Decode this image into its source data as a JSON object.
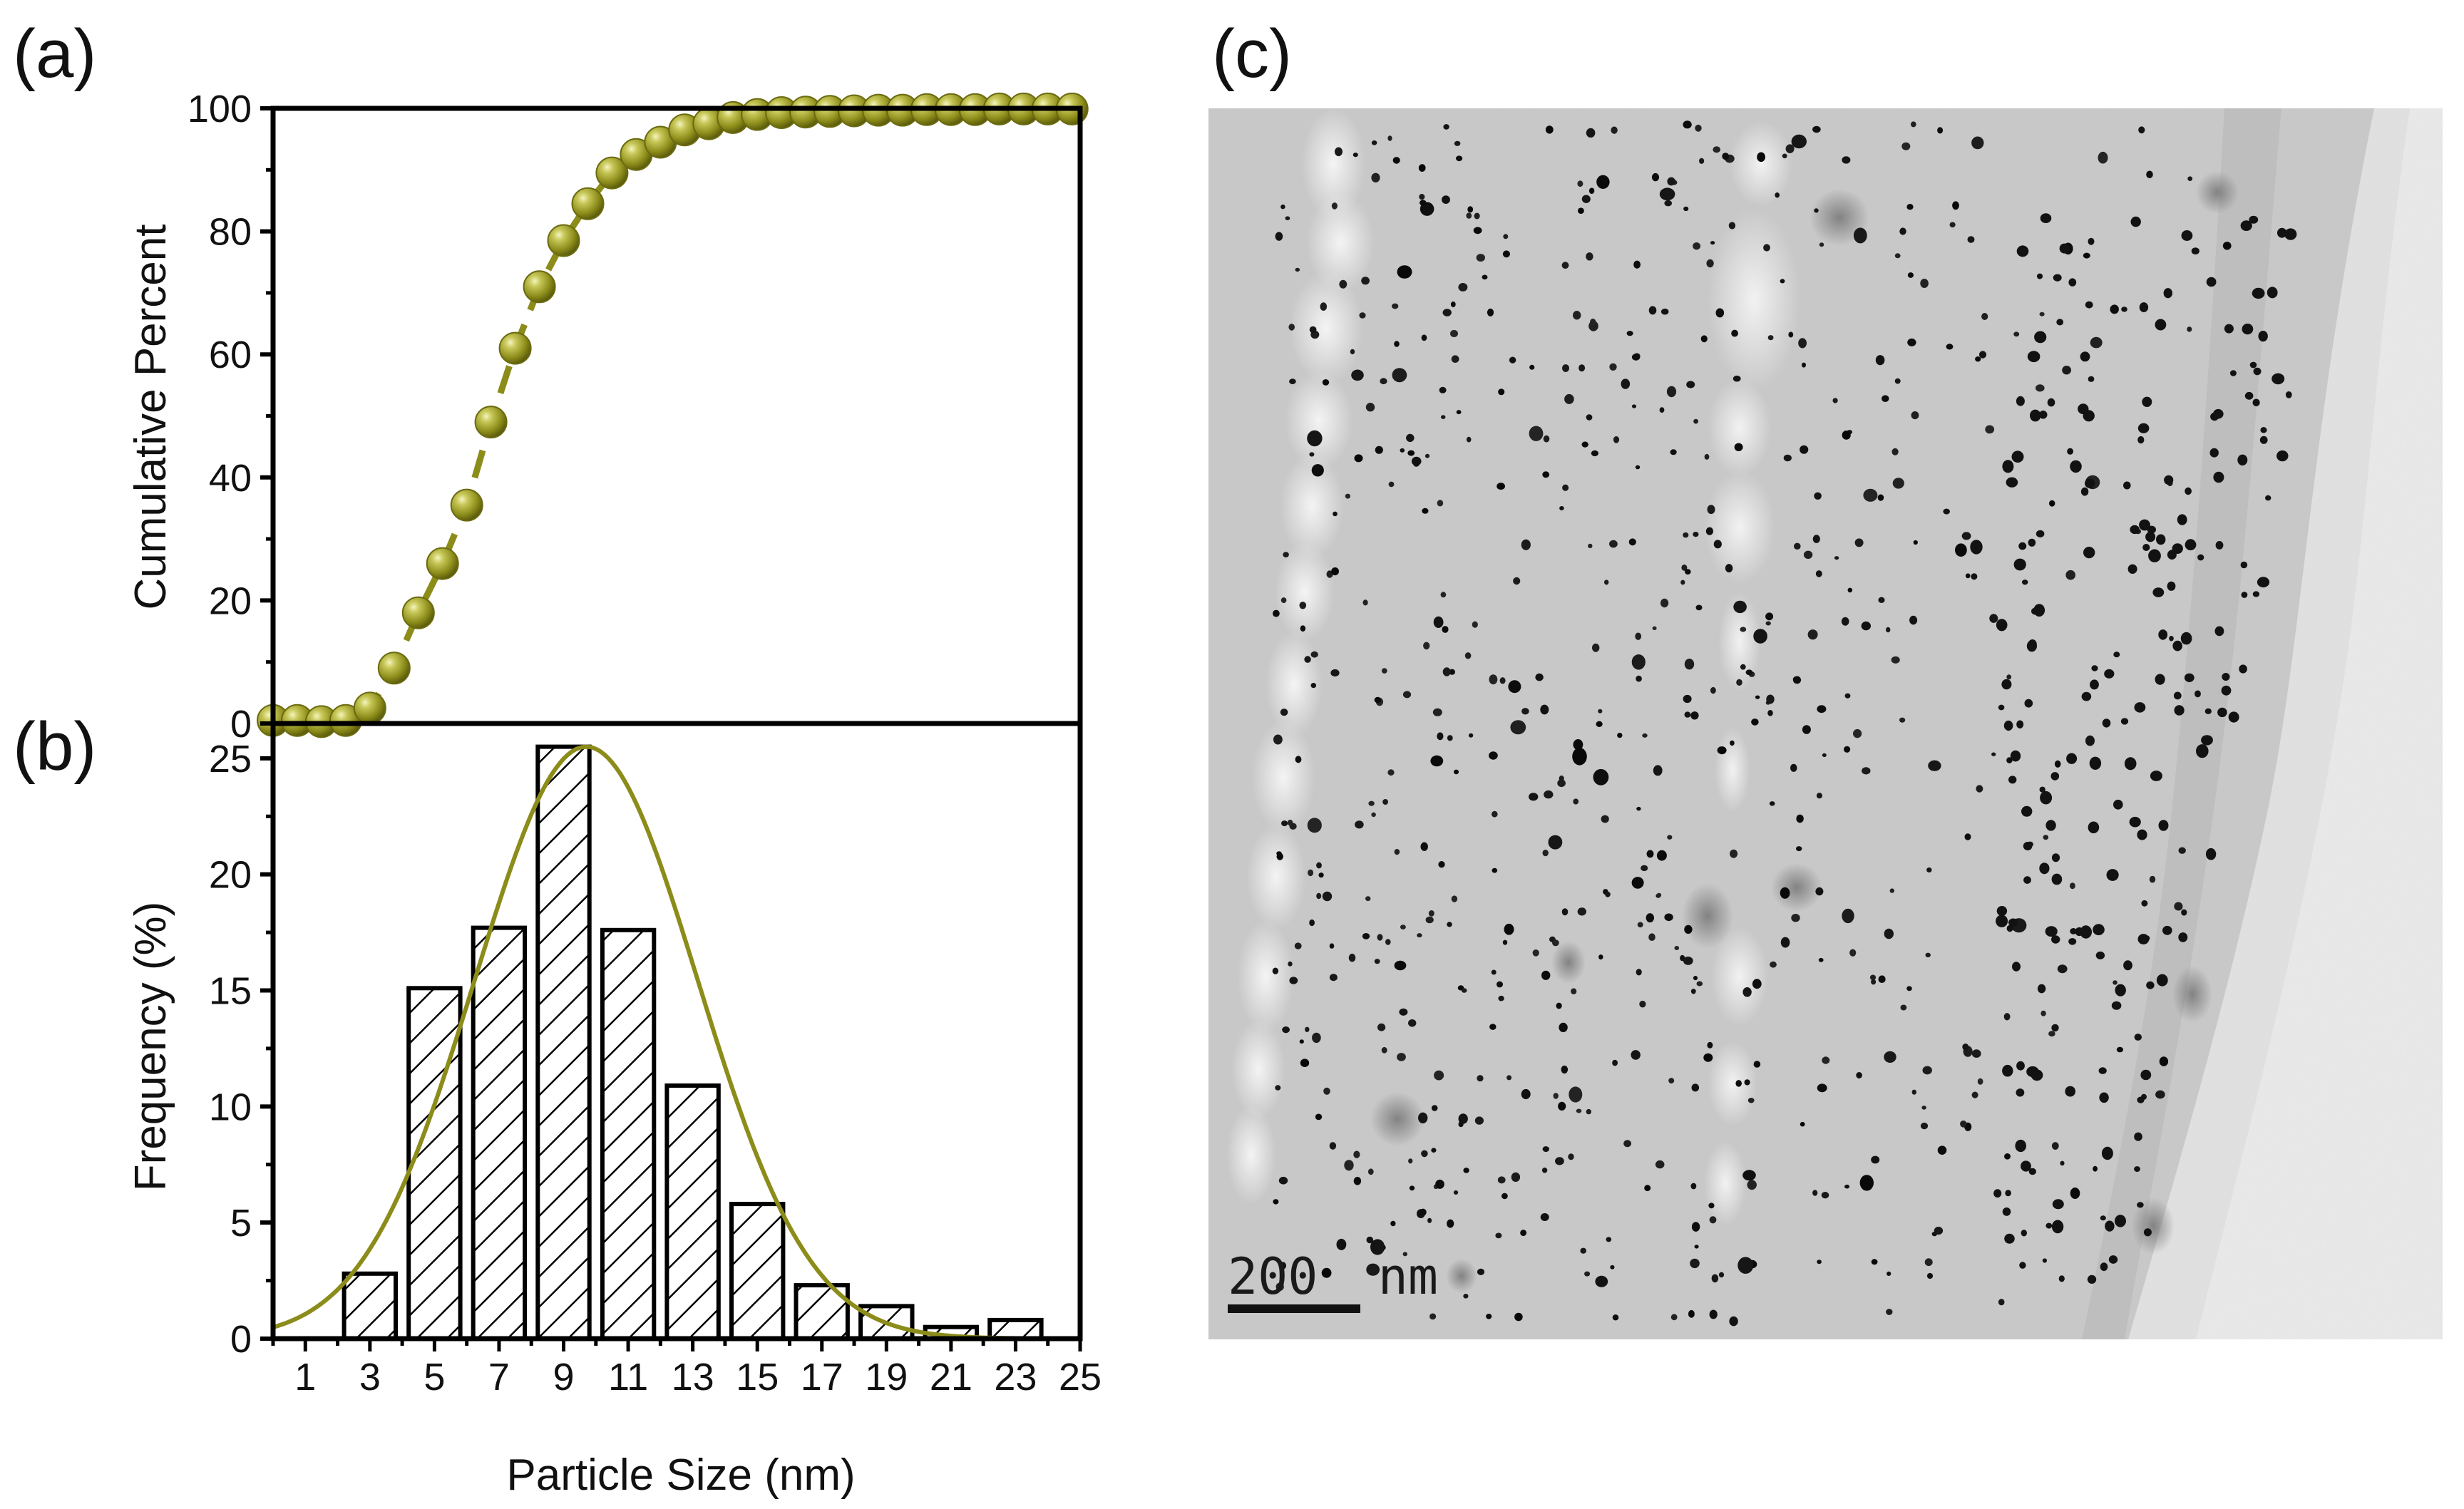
{
  "panels": {
    "a": "(a)",
    "b": "(b)",
    "c": "(c)"
  },
  "colors": {
    "accent": "#8c8c1a",
    "accent_light": "#d6d67a",
    "axis": "#000000",
    "dash_ref": "#9a9a9a"
  },
  "chart_data": [
    {
      "type": "line",
      "title": "",
      "xlabel": "",
      "ylabel": "Cumulative Percent",
      "xlim": [
        0,
        25
      ],
      "ylim": [
        0,
        100
      ],
      "yticks": [
        0,
        20,
        40,
        60,
        80,
        100
      ],
      "reference_line": 100,
      "series": [
        {
          "name": "Cumulative",
          "x": [
            0,
            0.75,
            1.5,
            2.25,
            3,
            3.75,
            4.5,
            5.25,
            6,
            6.75,
            7.5,
            8.25,
            9,
            9.75,
            10.5,
            11.25,
            12,
            12.75,
            13.5,
            14.25,
            15,
            15.75,
            16.5,
            17.25,
            18,
            18.75,
            19.5,
            20.25,
            21,
            21.75,
            22.5,
            23.25,
            24,
            24.75
          ],
          "values": [
            0.5,
            0.5,
            0.3,
            0.5,
            2.5,
            9,
            18,
            26,
            35.5,
            49,
            61,
            71,
            78.5,
            84.5,
            89.5,
            92.5,
            94.5,
            96.5,
            97.5,
            98.5,
            99,
            99.3,
            99.4,
            99.5,
            99.6,
            99.7,
            99.7,
            99.8,
            99.8,
            99.8,
            99.9,
            99.9,
            99.9,
            99.9
          ]
        }
      ]
    },
    {
      "type": "bar",
      "title": "",
      "xlabel": "Particle Size (nm)",
      "ylabel": "Frequency (%)",
      "xlim": [
        0,
        25
      ],
      "ylim": [
        0,
        26.5
      ],
      "yticks": [
        0,
        5,
        10,
        15,
        20,
        25
      ],
      "xticks": [
        1,
        3,
        5,
        7,
        9,
        11,
        13,
        15,
        17,
        19,
        21,
        23,
        25
      ],
      "bar_width": 1.6,
      "bars": {
        "centers": [
          3,
          5,
          7,
          9,
          11,
          13,
          15,
          17,
          19,
          21,
          23
        ],
        "values": [
          2.8,
          15.1,
          17.7,
          25.5,
          17.6,
          10.9,
          5.8,
          2.3,
          1.4,
          0.5,
          0.8
        ]
      },
      "fit": {
        "type": "gaussian",
        "amplitude": 25.5,
        "mean": 9.7,
        "sigma": 3.45
      }
    }
  ],
  "micrograph": {
    "scale_bar_label": "200  nm"
  }
}
